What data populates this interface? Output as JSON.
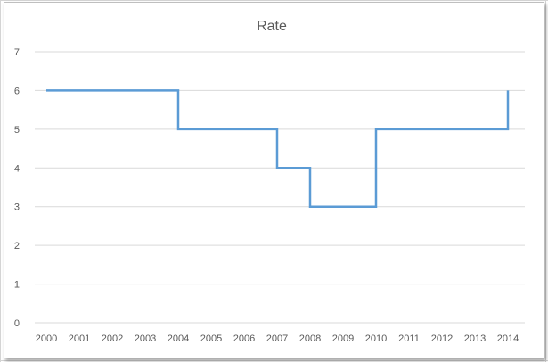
{
  "chart_data": {
    "type": "line",
    "title": "Rate",
    "xlabel": "",
    "ylabel": "",
    "categories": [
      "2000",
      "2001",
      "2002",
      "2003",
      "2004",
      "2005",
      "2006",
      "2007",
      "2008",
      "2009",
      "2010",
      "2011",
      "2012",
      "2013",
      "2014"
    ],
    "ylim": [
      0,
      7
    ],
    "yticks": [
      0,
      1,
      2,
      3,
      4,
      5,
      6,
      7
    ],
    "grid": true,
    "legend": "none",
    "step_style": "post",
    "series": [
      {
        "values": [
          6,
          6,
          6,
          6,
          5,
          5,
          5,
          4,
          3,
          3,
          5,
          5,
          5,
          5,
          6
        ],
        "color": "#5b9bd5"
      }
    ]
  },
  "colors": {
    "line": "#5b9bd5",
    "gridline": "#d9d9d9",
    "text": "#595959"
  }
}
